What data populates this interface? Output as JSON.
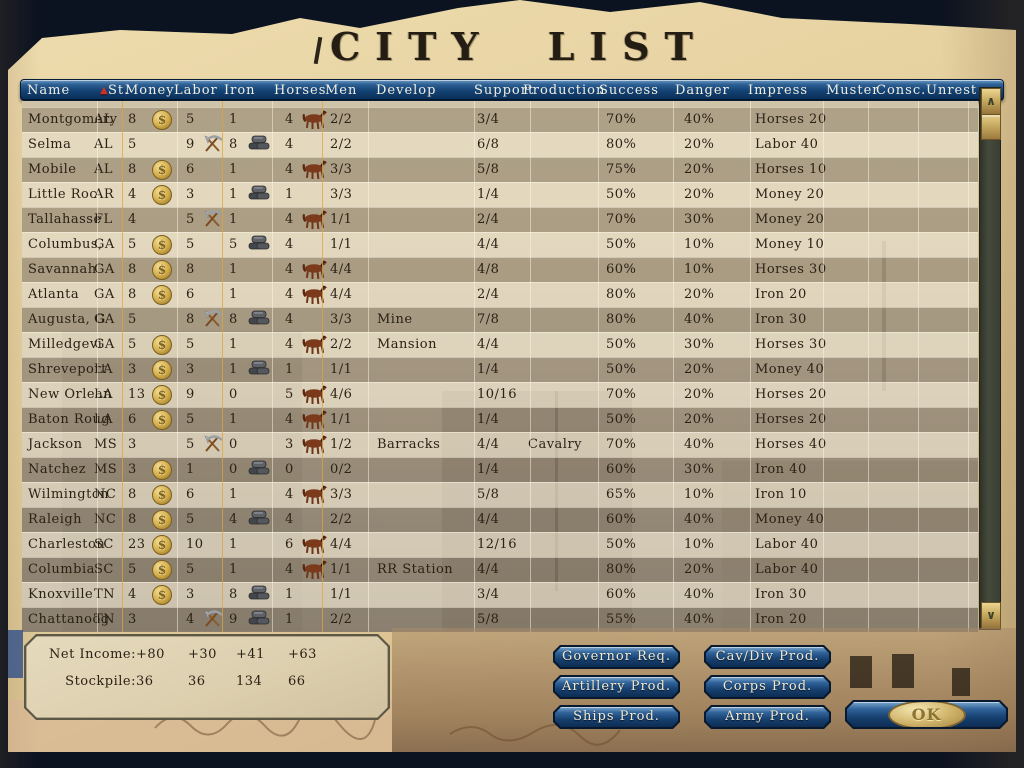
{
  "title": "CITY LIST",
  "sort": {
    "column": "St.",
    "indicator": "▲",
    "color": "#d03022"
  },
  "columns": [
    "Name",
    "St.",
    "Money",
    "Labor",
    "Iron",
    "Horses",
    "Men",
    "Develop",
    "Support",
    "Production",
    "Success",
    "Danger",
    "Impress",
    "Muster",
    "Consc.",
    "Unrest"
  ],
  "icons": {
    "money": "gold-coin",
    "labor": "pick-and-shovel",
    "iron": "iron-ingots",
    "horses": "horse",
    "coin_symbol": "$",
    "scroll_up": "∧",
    "scroll_down": "∨"
  },
  "row_fields": [
    "name",
    "state",
    "money",
    "has_money_icon",
    "labor",
    "has_labor_icon",
    "iron",
    "has_iron_icon",
    "horses",
    "has_horses_icon",
    "men",
    "develop",
    "support",
    "production",
    "success",
    "danger",
    "impress"
  ],
  "rows": [
    [
      "Montgomery",
      "AL",
      "8",
      1,
      "5",
      0,
      "1",
      0,
      "4",
      1,
      "2/2",
      "",
      "3/4",
      "",
      "70%",
      "40%",
      "Horses 20"
    ],
    [
      "Selma",
      "AL",
      "5",
      0,
      "9",
      1,
      "8",
      1,
      "4",
      0,
      "2/2",
      "",
      "6/8",
      "",
      "80%",
      "20%",
      "Labor 40"
    ],
    [
      "Mobile",
      "AL",
      "8",
      1,
      "6",
      0,
      "1",
      0,
      "4",
      1,
      "3/3",
      "",
      "5/8",
      "",
      "75%",
      "20%",
      "Horses 10"
    ],
    [
      "Little Roc",
      "AR",
      "4",
      1,
      "3",
      0,
      "1",
      1,
      "1",
      0,
      "3/3",
      "",
      "1/4",
      "",
      "50%",
      "20%",
      "Money 20"
    ],
    [
      "Tallahasse",
      "FL",
      "4",
      0,
      "5",
      1,
      "1",
      0,
      "4",
      1,
      "1/1",
      "",
      "2/4",
      "",
      "70%",
      "30%",
      "Money 20"
    ],
    [
      "Columbus,",
      "GA",
      "5",
      1,
      "5",
      0,
      "5",
      1,
      "4",
      0,
      "1/1",
      "",
      "4/4",
      "",
      "50%",
      "10%",
      "Money 10"
    ],
    [
      "Savannah",
      "GA",
      "8",
      1,
      "8",
      0,
      "1",
      0,
      "4",
      1,
      "4/4",
      "",
      "4/8",
      "",
      "60%",
      "10%",
      "Horses 30"
    ],
    [
      "Atlanta",
      "GA",
      "8",
      1,
      "6",
      0,
      "1",
      0,
      "4",
      1,
      "4/4",
      "",
      "2/4",
      "",
      "80%",
      "20%",
      "Iron 20"
    ],
    [
      "Augusta, G",
      "GA",
      "5",
      0,
      "8",
      1,
      "8",
      1,
      "4",
      0,
      "3/3",
      "Mine",
      "7/8",
      "",
      "80%",
      "40%",
      "Iron 30"
    ],
    [
      "Milledgevi",
      "GA",
      "5",
      1,
      "5",
      0,
      "1",
      0,
      "4",
      1,
      "2/2",
      "Mansion",
      "4/4",
      "",
      "50%",
      "30%",
      "Horses 30"
    ],
    [
      "Shreveport",
      "LA",
      "3",
      1,
      "3",
      0,
      "1",
      1,
      "1",
      0,
      "1/1",
      "",
      "1/4",
      "",
      "50%",
      "20%",
      "Money 40"
    ],
    [
      "New Orlean",
      "LA",
      "13",
      1,
      "9",
      0,
      "0",
      0,
      "5",
      1,
      "4/6",
      "",
      "10/16",
      "",
      "70%",
      "20%",
      "Horses 20"
    ],
    [
      "Baton Roug",
      "LA",
      "6",
      1,
      "5",
      0,
      "1",
      0,
      "4",
      1,
      "1/1",
      "",
      "1/4",
      "",
      "50%",
      "20%",
      "Horses 20"
    ],
    [
      "Jackson",
      "MS",
      "3",
      0,
      "5",
      1,
      "0",
      0,
      "3",
      1,
      "1/2",
      "Barracks",
      "4/4",
      "Cavalry",
      "70%",
      "40%",
      "Horses 40"
    ],
    [
      "Natchez",
      "MS",
      "3",
      1,
      "1",
      0,
      "0",
      1,
      "0",
      0,
      "0/2",
      "",
      "1/4",
      "",
      "60%",
      "30%",
      "Iron 40"
    ],
    [
      "Wilmington",
      "NC",
      "8",
      1,
      "6",
      0,
      "1",
      0,
      "4",
      1,
      "3/3",
      "",
      "5/8",
      "",
      "65%",
      "10%",
      "Iron 10"
    ],
    [
      "Raleigh",
      "NC",
      "8",
      1,
      "5",
      0,
      "4",
      1,
      "4",
      0,
      "2/2",
      "",
      "4/4",
      "",
      "60%",
      "40%",
      "Money 40"
    ],
    [
      "Charleston",
      "SC",
      "23",
      1,
      "10",
      0,
      "1",
      0,
      "6",
      1,
      "4/4",
      "",
      "12/16",
      "",
      "50%",
      "10%",
      "Labor 40"
    ],
    [
      "Columbia",
      "SC",
      "5",
      1,
      "5",
      0,
      "1",
      0,
      "4",
      1,
      "1/1",
      "RR Station",
      "4/4",
      "",
      "80%",
      "20%",
      "Labor 40"
    ],
    [
      "Knoxville",
      "TN",
      "4",
      1,
      "3",
      0,
      "8",
      1,
      "1",
      0,
      "1/1",
      "",
      "3/4",
      "",
      "60%",
      "40%",
      "Iron 30"
    ],
    [
      "Chattanoog",
      "TN",
      "3",
      0,
      "4",
      1,
      "9",
      1,
      "1",
      0,
      "2/2",
      "",
      "5/8",
      "",
      "55%",
      "40%",
      "Iron 20"
    ]
  ],
  "summary": {
    "net_income_label": "Net Income:",
    "net_income": [
      "+80",
      "+30",
      "+41",
      "+63"
    ],
    "stockpile_label": "Stockpile:",
    "stockpile": [
      "36",
      "36",
      "134",
      "66"
    ]
  },
  "buttons": {
    "left": [
      "Governor Req.",
      "Artillery Prod.",
      "Ships Prod."
    ],
    "right": [
      "Cav/Div Prod.",
      "Corps Prod.",
      "Army Prod."
    ],
    "ok": "OK"
  },
  "colors": {
    "header_blue": "#134273",
    "button_blue": "#16406f",
    "gold_line": "#dda638",
    "sort_red": "#d03022",
    "parchment": "#e6d1a0",
    "gold_coin": "#d2ab48"
  }
}
